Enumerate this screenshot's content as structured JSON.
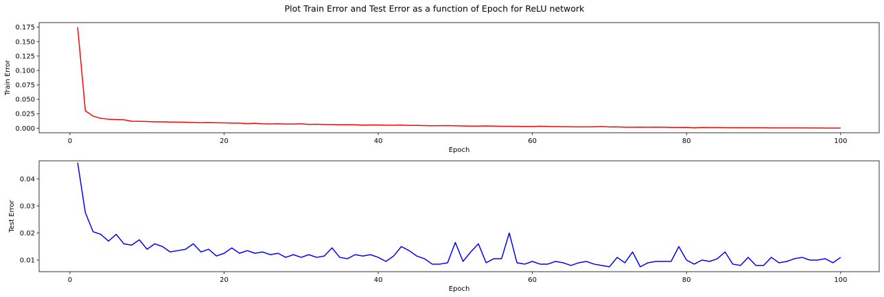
{
  "figure": {
    "suptitle": "Plot Train Error and Test Error as a function of Epoch for ReLU network"
  },
  "chart_data": [
    {
      "type": "line",
      "xlabel": "Epoch",
      "ylabel": "Train Error",
      "xlim": [
        -4.0,
        105.0
      ],
      "ylim": [
        -0.008,
        0.183
      ],
      "xticks": [
        0,
        20,
        40,
        60,
        80,
        100
      ],
      "xtick_labels": [
        "0",
        "20",
        "40",
        "60",
        "80",
        "100"
      ],
      "yticks": [
        0.0,
        0.025,
        0.05,
        0.075,
        0.1,
        0.125,
        0.15,
        0.175
      ],
      "ytick_labels": [
        "0.000",
        "0.025",
        "0.050",
        "0.075",
        "0.100",
        "0.125",
        "0.150",
        "0.175"
      ],
      "grid": false,
      "series": [
        {
          "color": "#ff0000",
          "x": [
            1,
            2,
            3,
            4,
            5,
            6,
            7,
            8,
            9,
            10,
            11,
            12,
            13,
            14,
            15,
            16,
            17,
            18,
            19,
            20,
            21,
            22,
            23,
            24,
            25,
            26,
            27,
            28,
            29,
            30,
            31,
            32,
            33,
            34,
            35,
            36,
            37,
            38,
            39,
            40,
            41,
            42,
            43,
            44,
            45,
            46,
            47,
            48,
            49,
            50,
            51,
            52,
            53,
            54,
            55,
            56,
            57,
            58,
            59,
            60,
            61,
            62,
            63,
            64,
            65,
            66,
            67,
            68,
            69,
            70,
            71,
            72,
            73,
            74,
            75,
            76,
            77,
            78,
            79,
            80,
            81,
            82,
            83,
            84,
            85,
            86,
            87,
            88,
            89,
            90,
            91,
            92,
            93,
            94,
            95,
            96,
            97,
            98,
            99,
            100
          ],
          "values": [
            0.175,
            0.03,
            0.021,
            0.017,
            0.0155,
            0.015,
            0.0145,
            0.012,
            0.0118,
            0.0115,
            0.011,
            0.011,
            0.0105,
            0.0105,
            0.0102,
            0.0098,
            0.0093,
            0.0096,
            0.0093,
            0.0092,
            0.0088,
            0.0087,
            0.0078,
            0.0085,
            0.0075,
            0.0073,
            0.0075,
            0.0072,
            0.0072,
            0.0075,
            0.0065,
            0.0068,
            0.0064,
            0.0062,
            0.006,
            0.006,
            0.006,
            0.0052,
            0.0055,
            0.0055,
            0.0052,
            0.005,
            0.0053,
            0.0048,
            0.0047,
            0.0044,
            0.0042,
            0.0043,
            0.0045,
            0.0042,
            0.0038,
            0.0036,
            0.0036,
            0.0038,
            0.0036,
            0.0032,
            0.0032,
            0.0031,
            0.003,
            0.0028,
            0.0034,
            0.003,
            0.0026,
            0.0025,
            0.0024,
            0.0023,
            0.0022,
            0.0024,
            0.0028,
            0.0021,
            0.0022,
            0.0016,
            0.0016,
            0.0018,
            0.0016,
            0.0018,
            0.0016,
            0.0014,
            0.0012,
            0.0013,
            0.0006,
            0.0012,
            0.0011,
            0.001,
            0.0009,
            0.0008,
            0.0009,
            0.0007,
            0.0007,
            0.0007,
            0.0005,
            0.0005,
            0.0005,
            0.0004,
            0.0004,
            0.0003,
            0.0003,
            0.0002,
            0.0002,
            0.0001
          ]
        }
      ]
    },
    {
      "type": "line",
      "xlabel": "Epoch",
      "ylabel": "Test Error",
      "xlim": [
        -4.0,
        105.0
      ],
      "ylim": [
        0.0057,
        0.0467
      ],
      "xticks": [
        0,
        20,
        40,
        60,
        80,
        100
      ],
      "xtick_labels": [
        "0",
        "20",
        "40",
        "60",
        "80",
        "100"
      ],
      "yticks": [
        0.01,
        0.02,
        0.03,
        0.04
      ],
      "ytick_labels": [
        "0.01",
        "0.02",
        "0.03",
        "0.04"
      ],
      "grid": false,
      "series": [
        {
          "color": "#0000ff",
          "x": [
            1,
            2,
            3,
            4,
            5,
            6,
            7,
            8,
            9,
            10,
            11,
            12,
            13,
            14,
            15,
            16,
            17,
            18,
            19,
            20,
            21,
            22,
            23,
            24,
            25,
            26,
            27,
            28,
            29,
            30,
            31,
            32,
            33,
            34,
            35,
            36,
            37,
            38,
            39,
            40,
            41,
            42,
            43,
            44,
            45,
            46,
            47,
            48,
            49,
            50,
            51,
            52,
            53,
            54,
            55,
            56,
            57,
            58,
            59,
            60,
            61,
            62,
            63,
            64,
            65,
            66,
            67,
            68,
            69,
            70,
            71,
            72,
            73,
            74,
            75,
            76,
            77,
            78,
            79,
            80,
            81,
            82,
            83,
            84,
            85,
            86,
            87,
            88,
            89,
            90,
            91,
            92,
            93,
            94,
            95,
            96,
            97,
            98,
            99,
            100
          ],
          "values": [
            0.046,
            0.0275,
            0.0205,
            0.0195,
            0.017,
            0.0195,
            0.016,
            0.0155,
            0.0175,
            0.014,
            0.016,
            0.015,
            0.013,
            0.0135,
            0.014,
            0.016,
            0.013,
            0.014,
            0.0115,
            0.0125,
            0.0145,
            0.0125,
            0.0135,
            0.0125,
            0.013,
            0.012,
            0.0125,
            0.011,
            0.012,
            0.011,
            0.012,
            0.011,
            0.0115,
            0.0145,
            0.011,
            0.0105,
            0.012,
            0.0115,
            0.012,
            0.011,
            0.0095,
            0.0115,
            0.015,
            0.0135,
            0.0115,
            0.0105,
            0.0085,
            0.0085,
            0.009,
            0.0165,
            0.0095,
            0.013,
            0.016,
            0.009,
            0.0105,
            0.0105,
            0.02,
            0.009,
            0.0085,
            0.0095,
            0.0085,
            0.0085,
            0.0095,
            0.009,
            0.008,
            0.009,
            0.0095,
            0.0085,
            0.008,
            0.0075,
            0.011,
            0.009,
            0.013,
            0.0075,
            0.009,
            0.0095,
            0.0095,
            0.0095,
            0.015,
            0.01,
            0.0085,
            0.01,
            0.0095,
            0.0105,
            0.013,
            0.0085,
            0.008,
            0.011,
            0.008,
            0.008,
            0.011,
            0.009,
            0.0095,
            0.0105,
            0.011,
            0.01,
            0.01,
            0.0105,
            0.009,
            0.011
          ]
        }
      ]
    }
  ]
}
